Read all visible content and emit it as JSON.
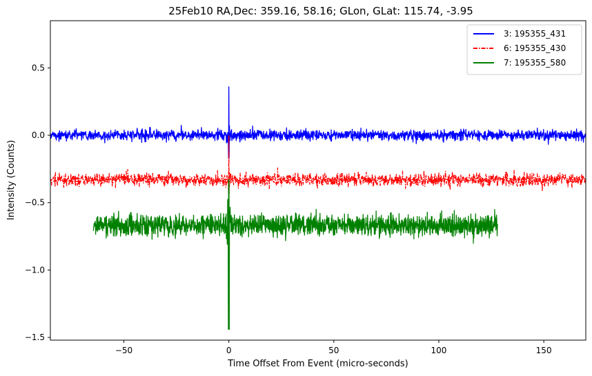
{
  "chart_data": {
    "type": "line",
    "title": "25Feb10 RA,Dec:  359.16,  58.16; GLon, GLat:  115.74,  -3.95",
    "xlabel": "Time Offset From Event (micro-seconds)",
    "ylabel": "Intensity (Counts)",
    "xlim": [
      -85,
      170
    ],
    "ylim": [
      -1.52,
      0.85
    ],
    "xticks": [
      -50,
      0,
      50,
      100,
      150
    ],
    "xtick_labels": [
      "−50",
      "0",
      "50",
      "100",
      "150"
    ],
    "yticks": [
      -1.5,
      -1.0,
      -0.5,
      0.0,
      0.5
    ],
    "ytick_labels": [
      "−1.5",
      "−1.0",
      "−0.5",
      "0.0",
      "0.5"
    ],
    "legend_position": "top-right",
    "series": [
      {
        "name": "3: 195355_431",
        "color": "#0000ff",
        "style": "solid",
        "x_start": -85,
        "x_end": 170,
        "baseline": 0.0,
        "noise_amplitude": 0.035,
        "events": [
          {
            "x": 0.0,
            "peak": 0.36,
            "min": -0.17
          }
        ]
      },
      {
        "name": "6: 195355_430",
        "color": "#ff0000",
        "style": "dashdot",
        "x_start": -85,
        "x_end": 170,
        "baseline": -0.33,
        "noise_amplitude": 0.04,
        "events": [
          {
            "x": 0.0,
            "peak": 0.0,
            "min": -0.43
          }
        ]
      },
      {
        "name": "7: 195355_580",
        "color": "#008000",
        "style": "solid",
        "x_start": -64.5,
        "x_end": 128,
        "baseline": -0.67,
        "noise_amplitude": 0.07,
        "events": [
          {
            "x": 0.0,
            "peak": -0.33,
            "min": -1.44
          }
        ]
      }
    ]
  }
}
